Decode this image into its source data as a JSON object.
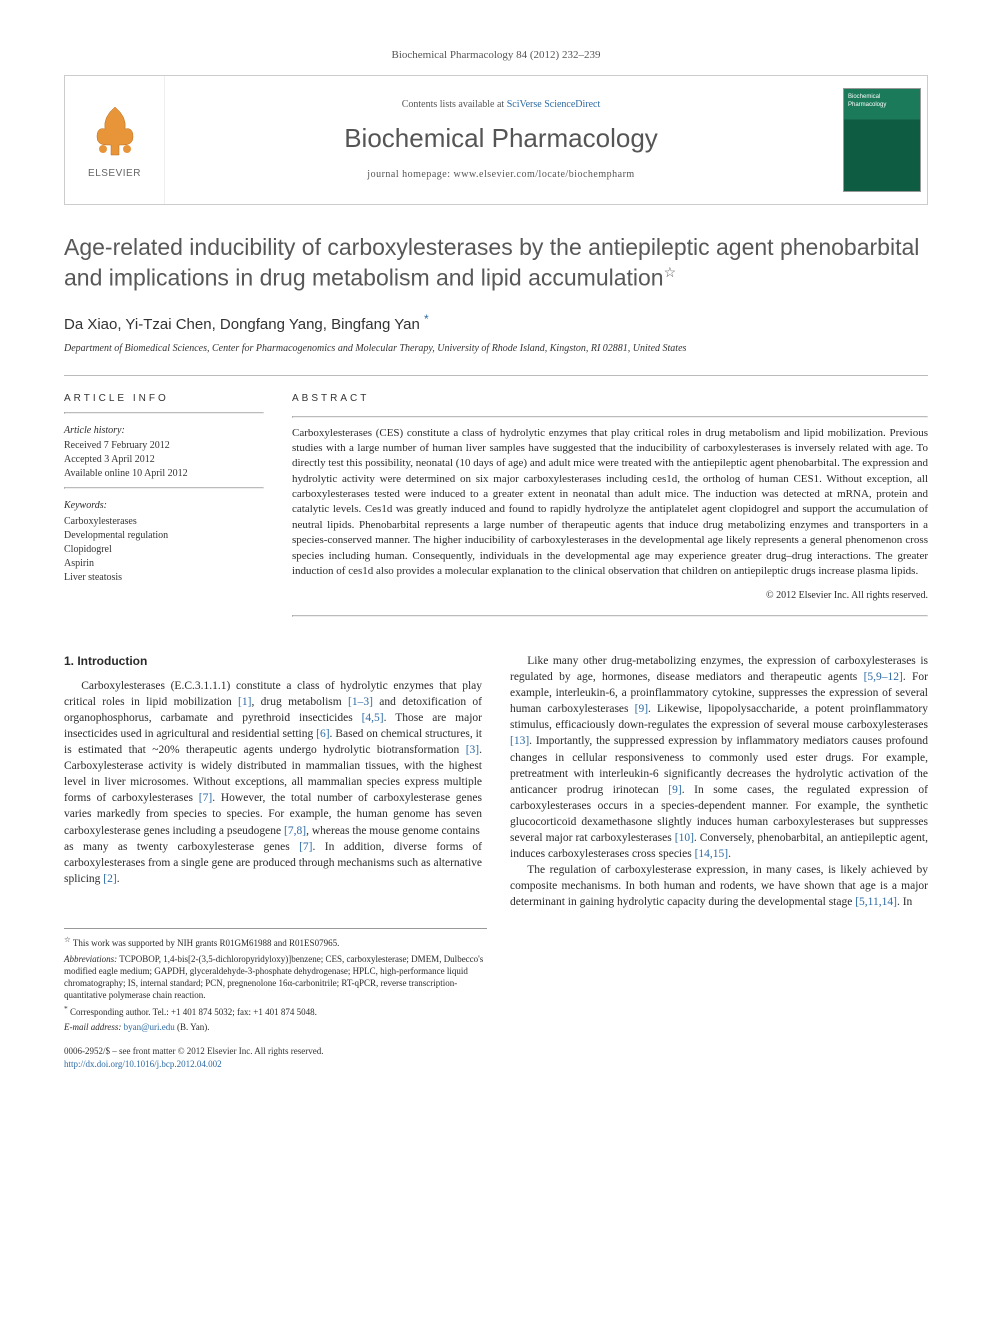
{
  "journal_ref": "Biochemical Pharmacology 84 (2012) 232–239",
  "header": {
    "contents_prefix": "Contents lists available at ",
    "contents_link": "SciVerse ScienceDirect",
    "journal_title": "Biochemical Pharmacology",
    "homepage_prefix": "journal homepage: ",
    "homepage_url": "www.elsevier.com/locate/biochempharm",
    "publisher": "ELSEVIER"
  },
  "title": "Age-related inducibility of carboxylesterases by the antiepileptic agent phenobarbital and implications in drug metabolism and lipid accumulation",
  "title_note_marker": "☆",
  "authors": "Da Xiao, Yi-Tzai Chen, Dongfang Yang, Bingfang Yan",
  "corr_marker": "*",
  "affiliation": "Department of Biomedical Sciences, Center for Pharmacogenomics and Molecular Therapy, University of Rhode Island, Kingston, RI 02881, United States",
  "article_info": {
    "heading": "ARTICLE INFO",
    "history_heading": "Article history:",
    "received": "Received 7 February 2012",
    "accepted": "Accepted 3 April 2012",
    "online": "Available online 10 April 2012",
    "keywords_heading": "Keywords:",
    "keywords": [
      "Carboxylesterases",
      "Developmental regulation",
      "Clopidogrel",
      "Aspirin",
      "Liver steatosis"
    ]
  },
  "abstract": {
    "heading": "ABSTRACT",
    "text": "Carboxylesterases (CES) constitute a class of hydrolytic enzymes that play critical roles in drug metabolism and lipid mobilization. Previous studies with a large number of human liver samples have suggested that the inducibility of carboxylesterases is inversely related with age. To directly test this possibility, neonatal (10 days of age) and adult mice were treated with the antiepileptic agent phenobarbital. The expression and hydrolytic activity were determined on six major carboxylesterases including ces1d, the ortholog of human CES1. Without exception, all carboxylesterases tested were induced to a greater extent in neonatal than adult mice. The induction was detected at mRNA, protein and catalytic levels. Ces1d was greatly induced and found to rapidly hydrolyze the antiplatelet agent clopidogrel and support the accumulation of neutral lipids. Phenobarbital represents a large number of therapeutic agents that induce drug metabolizing enzymes and transporters in a species-conserved manner. The higher inducibility of carboxylesterases in the developmental age likely represents a general phenomenon cross species including human. Consequently, individuals in the developmental age may experience greater drug–drug interactions. The greater induction of ces1d also provides a molecular explanation to the clinical observation that children on antiepileptic drugs increase plasma lipids.",
    "copyright": "© 2012 Elsevier Inc. All rights reserved."
  },
  "body": {
    "section_heading": "1. Introduction",
    "p1": "Carboxylesterases (E.C.3.1.1.1) constitute a class of hydrolytic enzymes that play critical roles in lipid mobilization [1], drug metabolism [1–3] and detoxification of organophosphorus, carbamate and pyrethroid insecticides [4,5]. Those are major insecticides used in agricultural and residential setting [6]. Based on chemical structures, it is estimated that ~20% therapeutic agents undergo hydrolytic biotransformation [3]. Carboxylesterase activity is widely distributed in mammalian tissues, with the highest level in liver microsomes. Without exceptions, all mammalian species express multiple forms of carboxylesterases [7]. However, the total number of carboxylesterase genes varies markedly from species to species. For example, the human genome has seven carboxylesterase genes including a pseudogene [7,8], whereas the mouse genome contains",
    "p2": "as many as twenty carboxylesterase genes [7]. In addition, diverse forms of carboxylesterases from a single gene are produced through mechanisms such as alternative splicing [2].",
    "p3": "Like many other drug-metabolizing enzymes, the expression of carboxylesterases is regulated by age, hormones, disease mediators and therapeutic agents [5,9–12]. For example, interleukin-6, a proinflammatory cytokine, suppresses the expression of several human carboxylesterases [9]. Likewise, lipopolysaccharide, a potent proinflammatory stimulus, efficaciously down-regulates the expression of several mouse carboxylesterases [13]. Importantly, the suppressed expression by inflammatory mediators causes profound changes in cellular responsiveness to commonly used ester drugs. For example, pretreatment with interleukin-6 significantly decreases the hydrolytic activation of the anticancer prodrug irinotecan [9]. In some cases, the regulated expression of carboxylesterases occurs in a species-dependent manner. For example, the synthetic glucocorticoid dexamethasone slightly induces human carboxylesterases but suppresses several major rat carboxylesterases [10]. Conversely, phenobarbital, an antiepileptic agent, induces carboxylesterases cross species [14,15].",
    "p4": "The regulation of carboxylesterase expression, in many cases, is likely achieved by composite mechanisms. In both human and rodents, we have shown that age is a major determinant in gaining hydrolytic capacity during the developmental stage [5,11,14]. In"
  },
  "footnotes": {
    "funding_marker": "☆",
    "funding": "This work was supported by NIH grants R01GM61988 and R01ES07965.",
    "abbrev_label": "Abbreviations:",
    "abbrev": " TCPOBOP, 1,4-bis[2-(3,5-dichloropyridyloxy)]benzene; CES, carboxylesterase; DMEM, Dulbecco's modified eagle medium; GAPDH, glyceraldehyde-3-phosphate dehydrogenase; HPLC, high-performance liquid chromatography; IS, internal standard; PCN, pregnenolone 16α-carbonitrile; RT-qPCR, reverse transcription-quantitative polymerase chain reaction.",
    "corr_marker": "*",
    "corr": "Corresponding author. Tel.: +1 401 874 5032; fax: +1 401 874 5048.",
    "email_label": "E-mail address:",
    "email": "byan@uri.edu",
    "email_suffix": " (B. Yan)."
  },
  "bottom": {
    "left1": "0006-2952/$ – see front matter © 2012 Elsevier Inc. All rights reserved.",
    "doi_prefix": "http://dx.doi.org/",
    "doi": "10.1016/j.bcp.2012.04.002"
  },
  "colors": {
    "link": "#2d6aa3",
    "text": "#2a2a2a",
    "heading_gray": "#585858",
    "rule": "#bbbbbb",
    "cover_green_top": "#1a7a5a",
    "cover_green_bottom": "#0e5c42"
  }
}
